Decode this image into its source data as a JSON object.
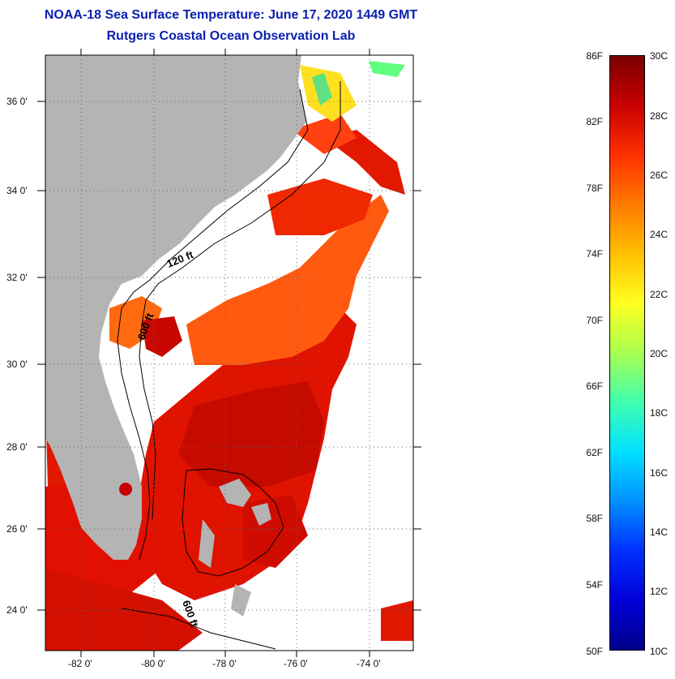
{
  "header": {
    "title": "NOAA-18 Sea Surface Temperature:  June 17, 2020 1449 GMT",
    "subtitle": "Rutgers Coastal Ocean Observation Lab"
  },
  "map": {
    "lat_labels": [
      "36 0'",
      "34 0'",
      "32 0'",
      "30 0'",
      "28 0'",
      "26 0'",
      "24 0'"
    ],
    "lon_labels": [
      "-82 0'",
      "-80 0'",
      "-78 0'",
      "-76 0'",
      "-74 0'"
    ],
    "isobath_labels": [
      "120 ft",
      "600 ft",
      "600 ft"
    ],
    "land_color": "#b4b4b4",
    "cloud_color": "#ffffff"
  },
  "colorbar": {
    "fahrenheit_labels": [
      "86F",
      "82F",
      "78F",
      "74F",
      "70F",
      "66F",
      "62F",
      "58F",
      "54F",
      "50F"
    ],
    "celsius_labels": [
      "30C",
      "28C",
      "26C",
      "24C",
      "22C",
      "20C",
      "18C",
      "16C",
      "14C",
      "12C",
      "10C"
    ],
    "gradient": [
      "#7a0000",
      "#c80000",
      "#ff3000",
      "#ff7a00",
      "#ffc000",
      "#ffff20",
      "#a8ff50",
      "#40ffb0",
      "#00e0ff",
      "#0090ff",
      "#0030ff",
      "#0000d8",
      "#00008a"
    ]
  }
}
